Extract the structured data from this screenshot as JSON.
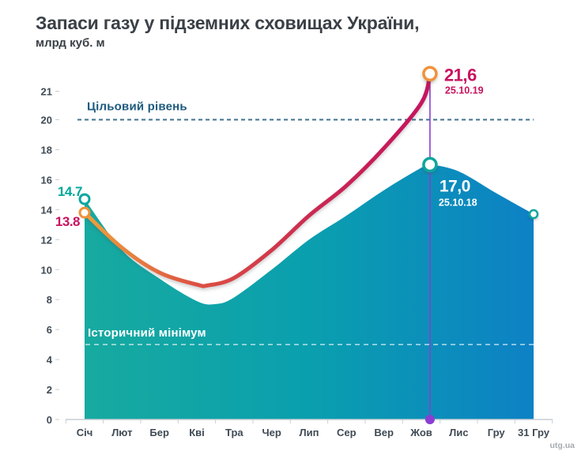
{
  "header": {
    "title": "Запаси газу у підземних сховищах України,",
    "subtitle": "млрд куб. м"
  },
  "watermark": "utg.ua",
  "colors": {
    "background": "#ffffff",
    "title_text": "#3a4046",
    "axis_text": "#3f4a54",
    "axis_line": "#c9ced3",
    "area_gradient": [
      "#17aaa0",
      "#0a9fae",
      "#0d81c5"
    ],
    "line_gradient": [
      "#efa23c",
      "#dd5142",
      "#ca2852",
      "#c4125f"
    ],
    "label_2018_start": "#00a79b",
    "label_2019": "#c8125f",
    "target_line": "#3f7290",
    "target_text": "#1c5a7e",
    "hist_text": "#ffffff",
    "marker_teal": "#0ba69e",
    "marker_orange": "#f0923a",
    "purple": "#8a3ed2",
    "watermark_text": "#a7abb0"
  },
  "chart_data": {
    "type": "area",
    "title": "Запаси газу у підземних сховищах України,",
    "units_label": "млрд куб. м",
    "x_categories": [
      "Січ",
      "Лют",
      "Бер",
      "Кві",
      "Тра",
      "Чер",
      "Лип",
      "Сер",
      "Вер",
      "Жов",
      "Лис",
      "Гру",
      "31 Гру"
    ],
    "y_ticks_display": [
      21,
      20,
      18,
      16,
      14,
      12,
      10,
      8,
      6,
      4,
      2,
      0
    ],
    "ylim": [
      0,
      22
    ],
    "grid": "off",
    "legend": "none",
    "target_level": {
      "value": 20,
      "label": "Цільовий рівень"
    },
    "historical_min": {
      "value": 5,
      "label": "Історичний мінімум"
    },
    "series": [
      {
        "id": "storage-2018",
        "render": "area",
        "points": [
          [
            0,
            14.7
          ],
          [
            1,
            11.3
          ],
          [
            2,
            9.4
          ],
          [
            3,
            7.9
          ],
          [
            3.5,
            7.7
          ],
          [
            4,
            8.15
          ],
          [
            5,
            10.0
          ],
          [
            6,
            12.0
          ],
          [
            7,
            13.6
          ],
          [
            8,
            15.3
          ],
          [
            9,
            16.8
          ],
          [
            9.23,
            17.0
          ],
          [
            10,
            16.55
          ],
          [
            11,
            15.1
          ],
          [
            12,
            13.7
          ]
        ],
        "start_label": "14.7",
        "peak": {
          "pos": 9.23,
          "value": 17.0,
          "value_label": "17,0",
          "date_label": "25.10.18"
        },
        "end_value": 13.7
      },
      {
        "id": "injection-2019",
        "render": "line",
        "points": [
          [
            0,
            13.8
          ],
          [
            1,
            11.45
          ],
          [
            2,
            9.8
          ],
          [
            3,
            9.0
          ],
          [
            3.3,
            8.95
          ],
          [
            4,
            9.45
          ],
          [
            5,
            11.3
          ],
          [
            6,
            13.6
          ],
          [
            7,
            15.6
          ],
          [
            8,
            18.1
          ],
          [
            9,
            20.6
          ],
          [
            9.23,
            21.6
          ]
        ],
        "start_label": "13.8",
        "end": {
          "pos": 9.23,
          "value": 21.6,
          "value_label": "21,6",
          "date_label": "25.10.19"
        }
      }
    ]
  }
}
